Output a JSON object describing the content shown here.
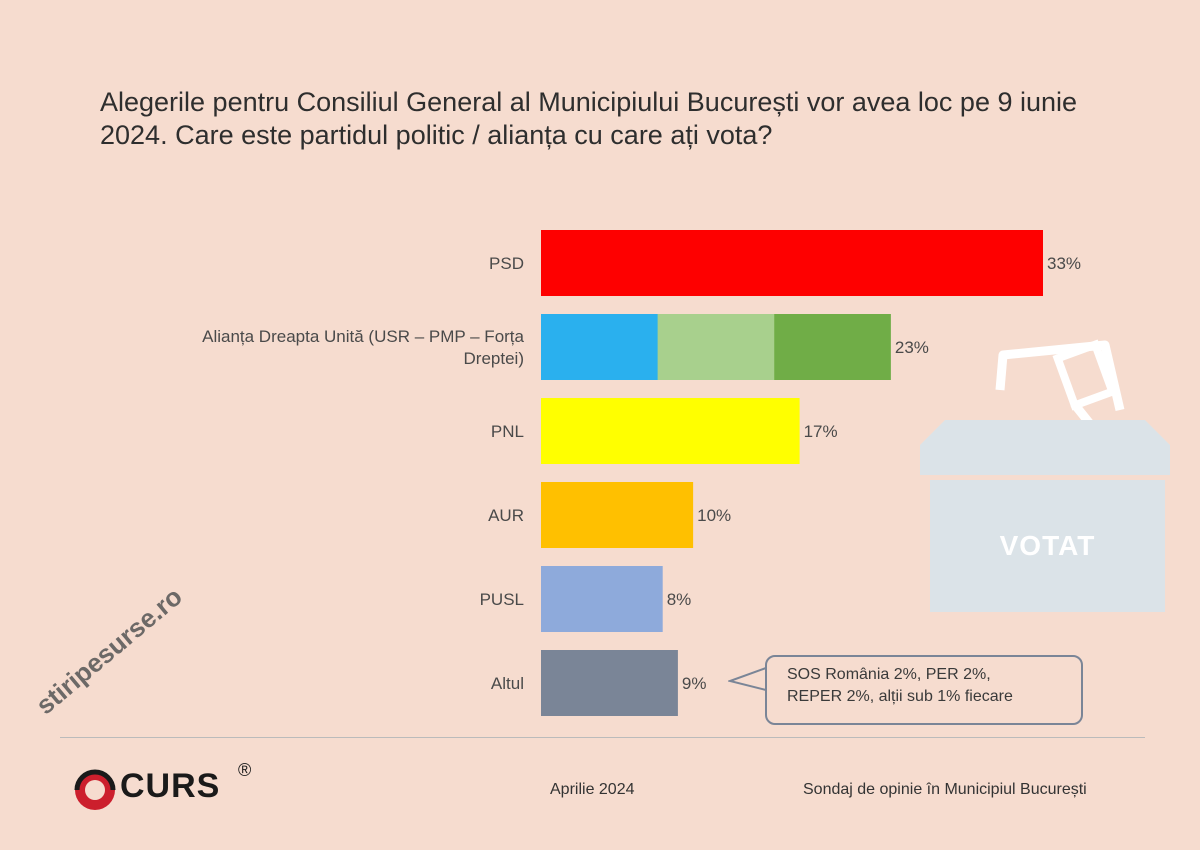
{
  "title": "Alegerile pentru Consiliul General al Municipiului București vor avea loc pe 9 iunie 2024. Care este partidul politic / alianța cu care ați vota?",
  "chart_data": {
    "type": "bar",
    "orientation": "horizontal",
    "title": "Alegerile pentru Consiliul General al Municipiului București vor avea loc pe 9 iunie 2024. Care este partidul politic / alianța cu care ați vota?",
    "categories": [
      "PSD",
      "Alianța Dreapta Unită (USR – PMP – Forța Dreptei)",
      "PNL",
      "AUR",
      "PUSL",
      "Altul"
    ],
    "category_lines": [
      [
        "PSD"
      ],
      [
        "Alianța Dreapta Unită (USR – PMP – Forța",
        "Dreptei)"
      ],
      [
        "PNL"
      ],
      [
        "AUR"
      ],
      [
        "PUSL"
      ],
      [
        "Altul"
      ]
    ],
    "values": [
      33,
      23,
      17,
      10,
      8,
      9
    ],
    "value_labels": [
      "33%",
      "23%",
      "17%",
      "10%",
      "8%",
      "9%"
    ],
    "colors": [
      [
        "#fe0000"
      ],
      [
        "#2ab0ee",
        "#a8d08d",
        "#70ad47"
      ],
      [
        "#ffff00"
      ],
      [
        "#ffc000"
      ],
      [
        "#8eaadb"
      ],
      [
        "#7a8597"
      ]
    ],
    "xlim": [
      0,
      33
    ],
    "unit": "%"
  },
  "ballot": {
    "label": "VOTAT"
  },
  "note": {
    "lines": [
      "SOS România 2%, PER 2%,",
      "REPER 2%, alții sub 1% fiecare"
    ]
  },
  "footer": {
    "logo": "CURS",
    "logo_mark": "®",
    "date": "Aprilie 2024",
    "source": "Sondaj de opinie în Municipiul București"
  },
  "watermark": "stiripesurse.ro"
}
